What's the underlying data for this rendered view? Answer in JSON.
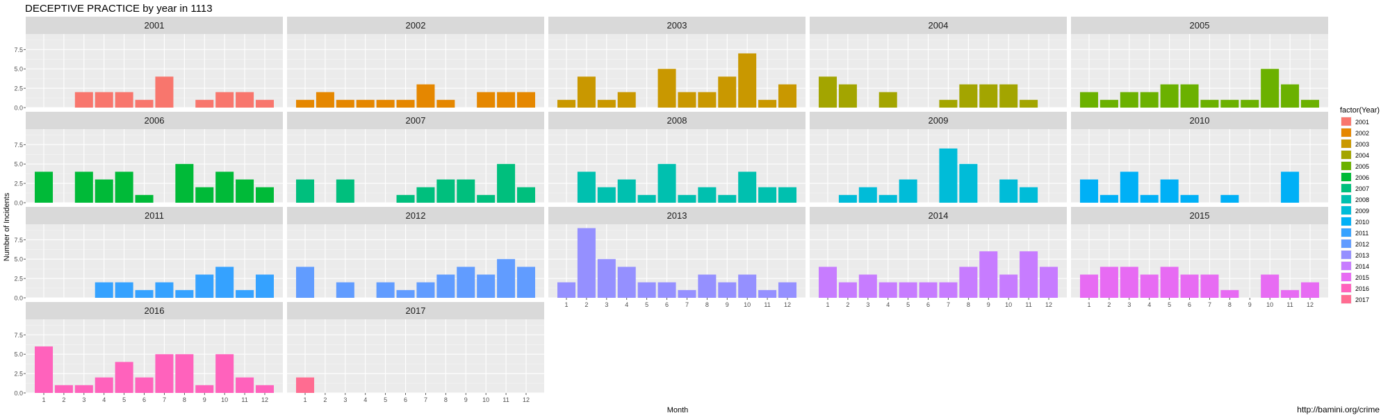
{
  "chart_data": {
    "type": "bar",
    "title": "DECEPTIVE PRACTICE by year in 1113",
    "xlabel": "Month",
    "ylabel": "Number of Incidents",
    "caption": "http://bamini.org/crime",
    "legend_title": "factor(Year)",
    "legend_position": "right",
    "ylim": [
      0,
      9.5
    ],
    "yticks": [
      "0.0",
      "2.5",
      "5.0",
      "7.5"
    ],
    "months": [
      "1",
      "2",
      "3",
      "4",
      "5",
      "6",
      "7",
      "8",
      "9",
      "10",
      "11",
      "12"
    ],
    "grid": true,
    "facets": [
      {
        "year": "2001",
        "color": "#F8766D",
        "values": [
          0,
          0,
          2,
          2,
          2,
          1,
          4,
          0,
          1,
          2,
          2,
          1
        ]
      },
      {
        "year": "2002",
        "color": "#E58700",
        "values": [
          1,
          2,
          1,
          1,
          1,
          1,
          3,
          1,
          0,
          2,
          2,
          2
        ]
      },
      {
        "year": "2003",
        "color": "#C99800",
        "values": [
          1,
          4,
          1,
          2,
          0,
          5,
          2,
          2,
          4,
          7,
          1,
          3
        ]
      },
      {
        "year": "2004",
        "color": "#A3A500",
        "values": [
          4,
          3,
          0,
          2,
          0,
          0,
          1,
          3,
          3,
          3,
          1,
          0
        ]
      },
      {
        "year": "2005",
        "color": "#6BB100",
        "values": [
          2,
          1,
          2,
          2,
          3,
          3,
          1,
          1,
          1,
          5,
          3,
          1
        ]
      },
      {
        "year": "2006",
        "color": "#00BA38",
        "values": [
          4,
          0,
          4,
          3,
          4,
          1,
          0,
          5,
          2,
          4,
          3,
          2
        ]
      },
      {
        "year": "2007",
        "color": "#00BF7D",
        "values": [
          3,
          0,
          3,
          0,
          0,
          1,
          2,
          3,
          3,
          1,
          5,
          2
        ]
      },
      {
        "year": "2008",
        "color": "#00C0AF",
        "values": [
          0,
          4,
          2,
          3,
          1,
          5,
          1,
          2,
          1,
          4,
          2,
          2
        ]
      },
      {
        "year": "2009",
        "color": "#00BCD8",
        "values": [
          0,
          1,
          2,
          1,
          3,
          0,
          7,
          5,
          0,
          3,
          2,
          0
        ]
      },
      {
        "year": "2010",
        "color": "#00B0F6",
        "values": [
          3,
          1,
          4,
          1,
          3,
          1,
          0,
          1,
          0,
          0,
          4,
          0
        ]
      },
      {
        "year": "2011",
        "color": "#35A2FF",
        "values": [
          0,
          0,
          0,
          2,
          2,
          1,
          2,
          1,
          3,
          4,
          1,
          3
        ]
      },
      {
        "year": "2012",
        "color": "#619CFF",
        "values": [
          4,
          0,
          2,
          0,
          2,
          1,
          2,
          3,
          4,
          3,
          5,
          4
        ]
      },
      {
        "year": "2013",
        "color": "#9590FF",
        "values": [
          2,
          9,
          5,
          4,
          2,
          2,
          1,
          3,
          2,
          3,
          1,
          2
        ]
      },
      {
        "year": "2014",
        "color": "#C77CFF",
        "values": [
          4,
          2,
          3,
          2,
          2,
          2,
          2,
          4,
          6,
          3,
          6,
          4
        ]
      },
      {
        "year": "2015",
        "color": "#E76BF3",
        "values": [
          3,
          4,
          4,
          3,
          4,
          3,
          3,
          1,
          0,
          3,
          1,
          2
        ]
      },
      {
        "year": "2016",
        "color": "#FF62BC",
        "values": [
          6,
          1,
          1,
          2,
          4,
          2,
          5,
          5,
          1,
          5,
          2,
          1
        ]
      },
      {
        "year": "2017",
        "color": "#FF6C91",
        "values": [
          2,
          0,
          0,
          0,
          0,
          0,
          0,
          0,
          0,
          0,
          0,
          0
        ]
      }
    ]
  }
}
